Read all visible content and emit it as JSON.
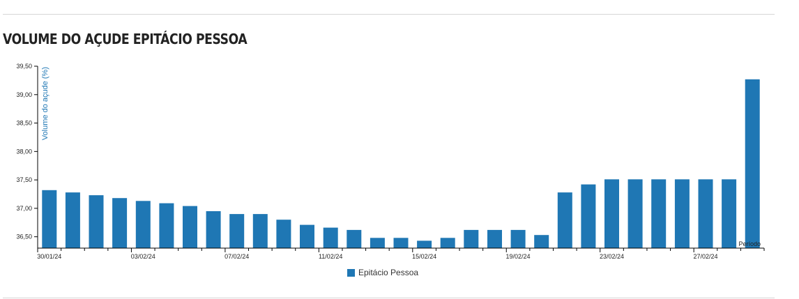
{
  "page_title": "VOLUME DO AÇUDE EPITÁCIO PESSOA",
  "chart_data": {
    "type": "bar",
    "title": "VOLUME DO AÇUDE EPITÁCIO PESSOA",
    "ylabel": "Volume do açude (%)",
    "xlabel": "Período",
    "ylim": [
      36.3,
      39.5
    ],
    "yticks": [
      "36,50",
      "37,00",
      "37,50",
      "38,00",
      "38,50",
      "39,00",
      "39,50"
    ],
    "ytick_values": [
      36.5,
      37.0,
      37.5,
      38.0,
      38.5,
      39.0,
      39.5
    ],
    "xtick_labels": [
      "30/01/24",
      "03/02/24",
      "07/02/24",
      "11/02/24",
      "15/02/24",
      "19/02/24",
      "23/02/24",
      "27/02/24"
    ],
    "categories": [
      "30/01/24",
      "31/01/24",
      "01/02/24",
      "02/02/24",
      "03/02/24",
      "04/02/24",
      "05/02/24",
      "06/02/24",
      "07/02/24",
      "08/02/24",
      "09/02/24",
      "10/02/24",
      "11/02/24",
      "12/02/24",
      "13/02/24",
      "14/02/24",
      "15/02/24",
      "16/02/24",
      "17/02/24",
      "18/02/24",
      "19/02/24",
      "20/02/24",
      "21/02/24",
      "22/02/24",
      "23/02/24",
      "24/02/24",
      "25/02/24",
      "26/02/24",
      "27/02/24",
      "28/02/24",
      "29/02/24"
    ],
    "series": [
      {
        "name": "Epitácio Pessoa",
        "color": "#1f77b4",
        "values": [
          37.32,
          37.28,
          37.23,
          37.18,
          37.13,
          37.09,
          37.04,
          36.95,
          36.9,
          36.9,
          36.8,
          36.71,
          36.66,
          36.62,
          36.48,
          36.48,
          36.43,
          36.48,
          36.62,
          36.62,
          36.62,
          36.53,
          37.28,
          37.42,
          37.51,
          37.51,
          37.51,
          37.51,
          37.51,
          37.51,
          39.27
        ]
      }
    ],
    "legend": "bottom-center",
    "grid": false
  }
}
